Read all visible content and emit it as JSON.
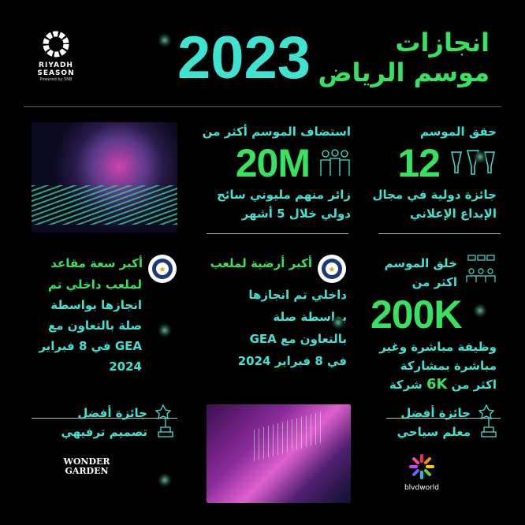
{
  "brand": {
    "line1": "RIYADH",
    "line2": "SEASON",
    "powered": "Powered by SNB"
  },
  "header": {
    "year": "2023",
    "title_line1": "انجازات",
    "title_line2": "موسم الرياض"
  },
  "stats": [
    {
      "heading": "حقق الموسم",
      "value": "12",
      "icon": "trophies-icon",
      "body": [
        "جائزة دولية في مجال",
        "الإبداع الإعلاني"
      ]
    },
    {
      "heading": "استضاف الموسم أكثر من",
      "value": "20M",
      "icon": "people-icon",
      "body": [
        "زائر منهم مليوني سائح",
        "دولي خلال 5 أشهر"
      ]
    },
    {
      "heading": [
        "خلق الموسم",
        "اكثر من"
      ],
      "value": "200K",
      "icon": "org-chart-icon",
      "body": [
        "وظيفة مباشرة وغير",
        "مباشرة بمشاركة",
        "اكثر من",
        "6K",
        "شركة"
      ]
    },
    {
      "heading": "أكبر أرضية لملعب",
      "icon": "guinness-world-records-icon",
      "body": [
        "داخلي تم انجازها",
        "بواسطة صلة",
        "بالتعاون مع GEA",
        "في 8 فبراير 2024"
      ]
    },
    {
      "heading": "أكبر سعة مقاعد",
      "icon": "guinness-world-records-icon",
      "body": [
        "لملعب داخلي تم",
        "انجازها بواسطة",
        "صلة بالتعاون مع",
        "GEA في 8 فبراير",
        "2024"
      ]
    }
  ],
  "awards": [
    {
      "text": [
        "جائزة أفضل",
        "معلم سياحي"
      ],
      "logo": "blvdworld",
      "icon": "star-trophy-icon"
    },
    {
      "text": [
        "جائزة أفضل",
        "تصميم ترفيهي"
      ],
      "logo": "WONDER GARDEN",
      "icon": "star-trophy-icon"
    }
  ],
  "colors": {
    "cyan": "#3fe3d2",
    "green": "#36e25f",
    "background": "#000000"
  }
}
